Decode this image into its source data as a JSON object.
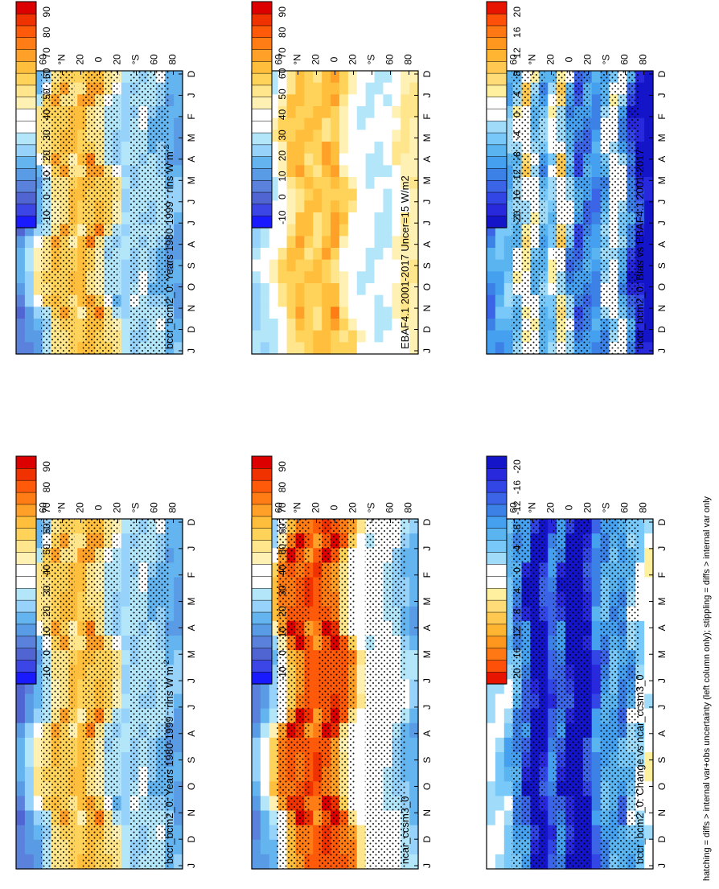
{
  "figure": {
    "footnote": "hatching = diffs > internal var+obs uncertainty (left column only); stippling = diffs > internal var only"
  },
  "colors": {
    "abs_scale": [
      "#1a1aff",
      "#3c46e6",
      "#5064d2",
      "#5a82dc",
      "#5a9be6",
      "#64b4f0",
      "#96d2fa",
      "#b4e6fa",
      "#ffffff",
      "#ffffff",
      "#fff0b4",
      "#ffe68c",
      "#ffd25a",
      "#ffbe3c",
      "#ffa028",
      "#ff7d14",
      "#ff5a0a",
      "#f03200",
      "#dc0000"
    ],
    "diff_scale": [
      "#1414c8",
      "#2828dc",
      "#3246e6",
      "#3c64e6",
      "#3c82e6",
      "#46a0f0",
      "#5ab4f0",
      "#78c8fa",
      "#a0dcfa",
      "#ffffff",
      "#ffffff",
      "#fff0a0",
      "#ffdc78",
      "#ffc850",
      "#ffb432",
      "#ff961e",
      "#ff7814",
      "#ff500a",
      "#e61400"
    ]
  },
  "chart_data": [
    {
      "id": "p1",
      "type": "heatmap",
      "title": "bccr_bcm2_0: Years 1980-1999 : rlns W m",
      "title_sup": "-2",
      "x_tick_labels": [
        "D",
        "J",
        "F",
        "M",
        "A",
        "M",
        "J",
        "J",
        "A",
        "S",
        "O",
        "N",
        "D",
        "J"
      ],
      "y_tick_labels": [
        "80",
        "60",
        "°N",
        "20",
        "0",
        "20",
        "°S",
        "60",
        "80"
      ],
      "colorbar_labels": [
        "-10",
        "0",
        "10",
        "20",
        "30",
        "40",
        "50",
        "60",
        "70",
        "80",
        "90"
      ],
      "scale": "abs",
      "profile": [
        0,
        12,
        22,
        32,
        60,
        54,
        40,
        44,
        62,
        56,
        30,
        21,
        14,
        22,
        26,
        18,
        20,
        14,
        8
      ],
      "seasonal_shift": 2.5,
      "stipple": true
    },
    {
      "id": "p2",
      "type": "heatmap",
      "title": "EBAF4.1 2001-2017 Uncer=15 W/m2",
      "title_sup": "",
      "x_tick_labels": [
        "D",
        "J",
        "F",
        "M",
        "A",
        "M",
        "J",
        "J",
        "A",
        "S",
        "O",
        "N",
        "D",
        "J"
      ],
      "y_tick_labels": [
        "80",
        "60",
        "°N",
        "20",
        "0",
        "20",
        "°S",
        "60",
        "80"
      ],
      "colorbar_labels": [
        "-10",
        "0",
        "10",
        "20",
        "30",
        "40",
        "50",
        "60",
        "70",
        "80",
        "90"
      ],
      "scale": "abs",
      "profile": [
        18,
        22,
        28,
        36,
        48,
        56,
        48,
        44,
        52,
        58,
        42,
        32,
        28,
        26,
        24,
        22,
        34,
        42,
        38
      ],
      "seasonal_shift": 2.0,
      "stipple": false
    },
    {
      "id": "p3",
      "type": "heatmap",
      "title": "bccr_bcm2_0: Bias vs EBAF4.1 2001-2017",
      "title_sup": "",
      "x_tick_labels": [
        "D",
        "J",
        "F",
        "M",
        "A",
        "M",
        "J",
        "J",
        "A",
        "S",
        "O",
        "N",
        "D",
        "J"
      ],
      "y_tick_labels": [
        "80",
        "60",
        "°N",
        "20",
        "0",
        "20",
        "°S",
        "60",
        "80"
      ],
      "colorbar_labels": [
        "-20",
        "-16",
        "-12",
        "-8",
        "-4",
        "0",
        "4",
        "8",
        "12",
        "16",
        "20"
      ],
      "scale": "diff",
      "profile": [
        -12,
        -8,
        -6,
        -4,
        6,
        -2,
        -8,
        -2,
        6,
        -6,
        -14,
        -10,
        -12,
        -4,
        2,
        -4,
        -14,
        -20,
        -24
      ],
      "seasonal_shift": 1.5,
      "stipple": true
    },
    {
      "id": "p4",
      "type": "heatmap",
      "title": "bccr_bcm2_0: Years 1980-1999 : rlns W m",
      "title_sup": "-2",
      "x_tick_labels": [
        "D",
        "J",
        "F",
        "M",
        "A",
        "M",
        "J",
        "J",
        "A",
        "S",
        "O",
        "N",
        "D",
        "J"
      ],
      "y_tick_labels": [
        "80",
        "60",
        "°N",
        "20",
        "0",
        "20",
        "°S",
        "60",
        "80"
      ],
      "colorbar_labels": [
        "-10",
        "0",
        "10",
        "20",
        "30",
        "40",
        "50",
        "60",
        "70",
        "80",
        "90"
      ],
      "scale": "abs",
      "profile": [
        0,
        12,
        22,
        32,
        60,
        54,
        40,
        44,
        62,
        56,
        30,
        21,
        14,
        22,
        26,
        18,
        20,
        14,
        8
      ],
      "seasonal_shift": 2.5,
      "stipple": true
    },
    {
      "id": "p5",
      "type": "heatmap",
      "title": "ncar_ccsm3_0",
      "title_sup": "",
      "x_tick_labels": [
        "D",
        "J",
        "F",
        "M",
        "A",
        "M",
        "J",
        "J",
        "A",
        "S",
        "O",
        "N",
        "D",
        "J"
      ],
      "y_tick_labels": [
        "80",
        "60",
        "°N",
        "20",
        "0",
        "20",
        "°S",
        "60",
        "80"
      ],
      "colorbar_labels": [
        "-10",
        "0",
        "10",
        "20",
        "30",
        "40",
        "50",
        "60",
        "70",
        "80",
        "90"
      ],
      "scale": "abs",
      "profile": [
        4,
        14,
        28,
        44,
        72,
        78,
        62,
        56,
        74,
        80,
        58,
        36,
        26,
        28,
        32,
        30,
        24,
        16,
        12
      ],
      "seasonal_shift": 2.5,
      "stipple": true
    },
    {
      "id": "p6",
      "type": "heatmap",
      "title": "bccr_bcm2_0: Change vs ncar_ccsm3_0",
      "title_sup": "",
      "x_tick_labels": [
        "D",
        "J",
        "F",
        "M",
        "A",
        "M",
        "J",
        "J",
        "A",
        "S",
        "O",
        "N",
        "D",
        "J"
      ],
      "y_tick_labels": [
        "80",
        "60",
        "°N",
        "20",
        "0",
        "20",
        "°S",
        "60",
        "80"
      ],
      "colorbar_labels": [
        "20",
        "16",
        "12",
        "8",
        "4",
        "0",
        "-4",
        "-8",
        "-12",
        "-16",
        "-20"
      ],
      "scale": "diff",
      "profile": [
        0,
        -2,
        -4,
        -10,
        -12,
        -24,
        -22,
        -12,
        -12,
        -22,
        -28,
        -20,
        -12,
        -8,
        -6,
        -12,
        -4,
        -2,
        2
      ],
      "seasonal_shift": 1.5,
      "stipple": true
    }
  ]
}
